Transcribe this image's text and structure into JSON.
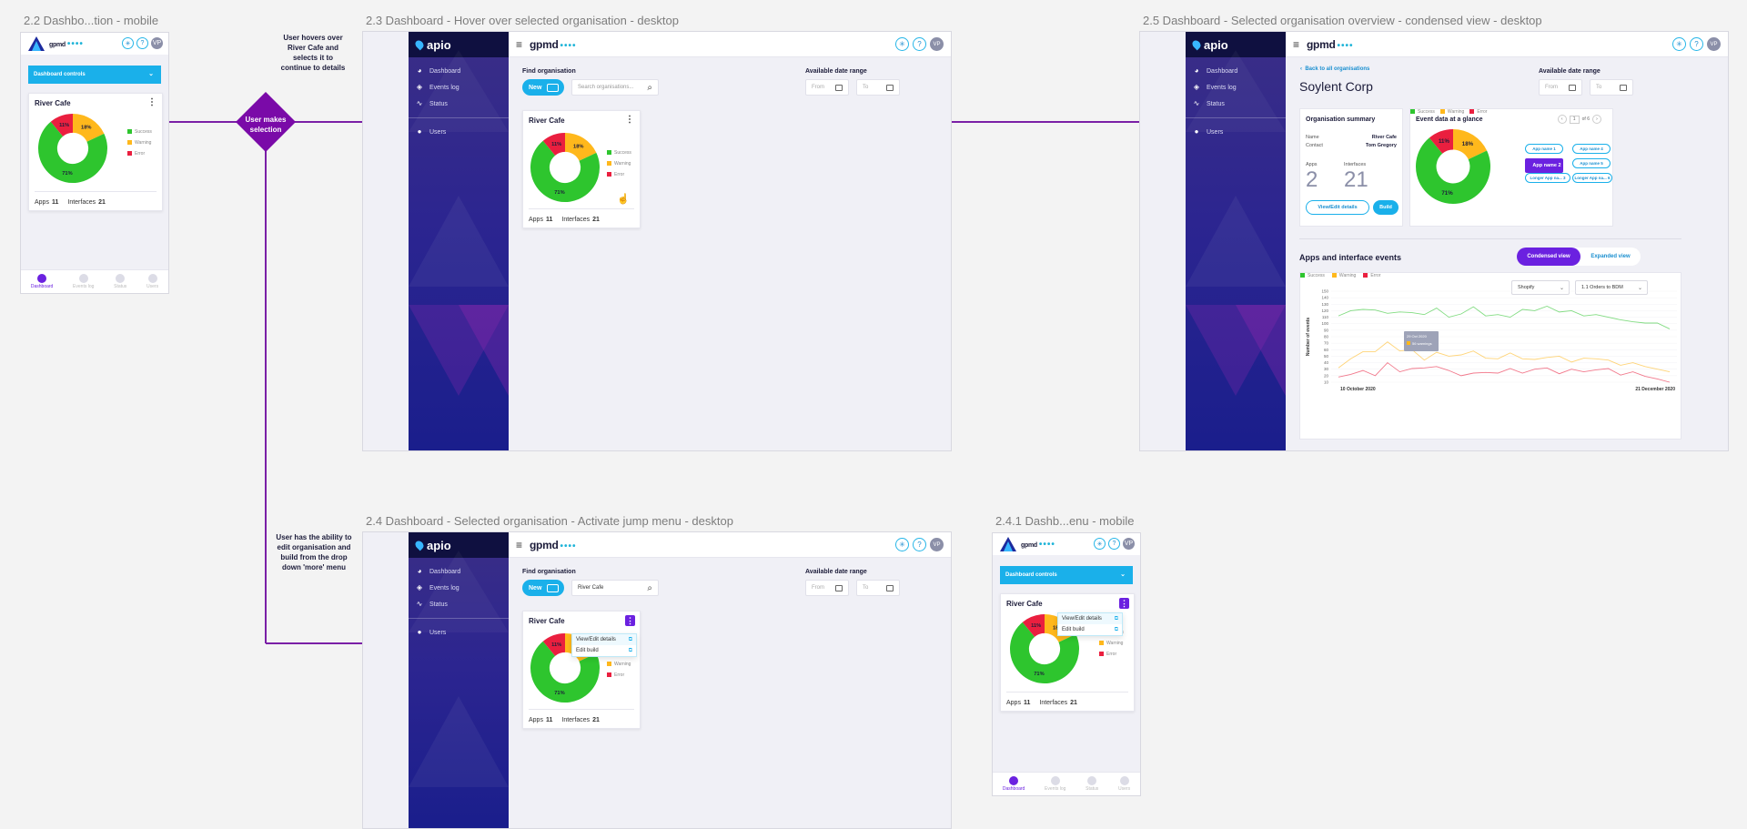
{
  "frames": {
    "f22": "2.2 Dashbo...tion - mobile",
    "f23": "2.3 Dashboard - Hover over selected organisation - desktop",
    "f25": "2.5 Dashboard - Selected organisation overview - condensed view - desktop",
    "f24": "2.4 Dashboard - Selected organisation - Activate jump menu - desktop",
    "f241": "2.4.1 Dashb...enu - mobile"
  },
  "notes": {
    "hover": "User hovers over River Cafe and selects it to continue to details",
    "decision": "User makes selection",
    "edit": "User has the ability to edit organisation and build from the drop down 'more' menu"
  },
  "app": {
    "brand_main": "apio",
    "brand_org": "gpmd",
    "brand_dots": "••••",
    "help_icon": "?",
    "settings_icon": "✳",
    "avatar": "VP",
    "nav": [
      "Dashboard",
      "Events log",
      "Status",
      "Users"
    ],
    "find_org": "Find organisation",
    "new_label": "New",
    "search_placeholder": "Search organisations...",
    "search_value": "River Cafe",
    "date_range": "Available date range",
    "from": "From",
    "to": "To",
    "dashboard_controls": "Dashboard controls",
    "mobile_nav": [
      "Dashboard",
      "Events log",
      "Status",
      "Users"
    ]
  },
  "org_card": {
    "name": "River Cafe",
    "legend": [
      "Success",
      "Warning",
      "Error"
    ],
    "pct_success": "71%",
    "pct_warning": "18%",
    "pct_error": "11%",
    "apps_label": "Apps",
    "apps": "11",
    "interfaces_label": "Interfaces",
    "interfaces": "21",
    "menu": [
      "View/Edit details",
      "Edit build"
    ]
  },
  "overview": {
    "back": "Back to all organisations",
    "title": "Soylent Corp",
    "summary_title": "Organisation summary",
    "name_label": "Name",
    "name_value": "River Cafe",
    "contact_label": "Contact",
    "contact_value": "Tom Gregory",
    "apps_label": "Apps",
    "apps": "2",
    "interfaces_label": "Interfaces",
    "interfaces": "21",
    "btn_view": "View/Edit details",
    "btn_build": "Build",
    "glance_title": "Event data at a glance",
    "pager": "of 6",
    "page": "1",
    "chips": [
      "App name 1",
      "App name 4",
      "App name 2",
      "App name 5",
      "Longer App na... 3",
      "Longer App na... 6"
    ],
    "events_title": "Apps and interface events",
    "condensed": "Condensed view",
    "expanded": "Expanded view",
    "select_app": "Shopify",
    "select_iface": "1.1 Orders to BDM",
    "tooltip_date": "29 Oct 2020",
    "tooltip_val": "56 warnings"
  },
  "colors": {
    "success": "#2ec52e",
    "warning": "#ffb81c",
    "error": "#ea1f3f",
    "accent": "#1ab0ea",
    "purple": "#6b21e0"
  },
  "chart_data": {
    "type": "line",
    "ylabel": "Number of events",
    "x_start_label": "10 October 2020",
    "x_end_label": "21 December 2020",
    "yticks": [
      "150",
      "140",
      "130",
      "120",
      "110",
      "100",
      "90",
      "80",
      "70",
      "60",
      "50",
      "40",
      "30",
      "20",
      "10"
    ],
    "ylim": [
      10,
      150
    ],
    "series": [
      {
        "name": "Success",
        "values": [
          112,
          120,
          122,
          121,
          116,
          118,
          117,
          114,
          124,
          110,
          115,
          126,
          112,
          114,
          110,
          122,
          120,
          127,
          118,
          120,
          112,
          114,
          110,
          106,
          103,
          101,
          101,
          92
        ]
      },
      {
        "name": "Warning",
        "values": [
          32,
          46,
          57,
          57,
          72,
          58,
          60,
          44,
          56,
          50,
          52,
          58,
          47,
          46,
          55,
          46,
          45,
          48,
          50,
          41,
          47,
          46,
          44,
          36,
          40,
          34,
          30,
          26
        ]
      },
      {
        "name": "Error",
        "values": [
          18,
          22,
          28,
          20,
          40,
          26,
          31,
          32,
          34,
          28,
          20,
          24,
          25,
          24,
          31,
          24,
          30,
          32,
          23,
          30,
          26,
          29,
          31,
          21,
          26,
          19,
          15,
          10
        ]
      }
    ]
  }
}
